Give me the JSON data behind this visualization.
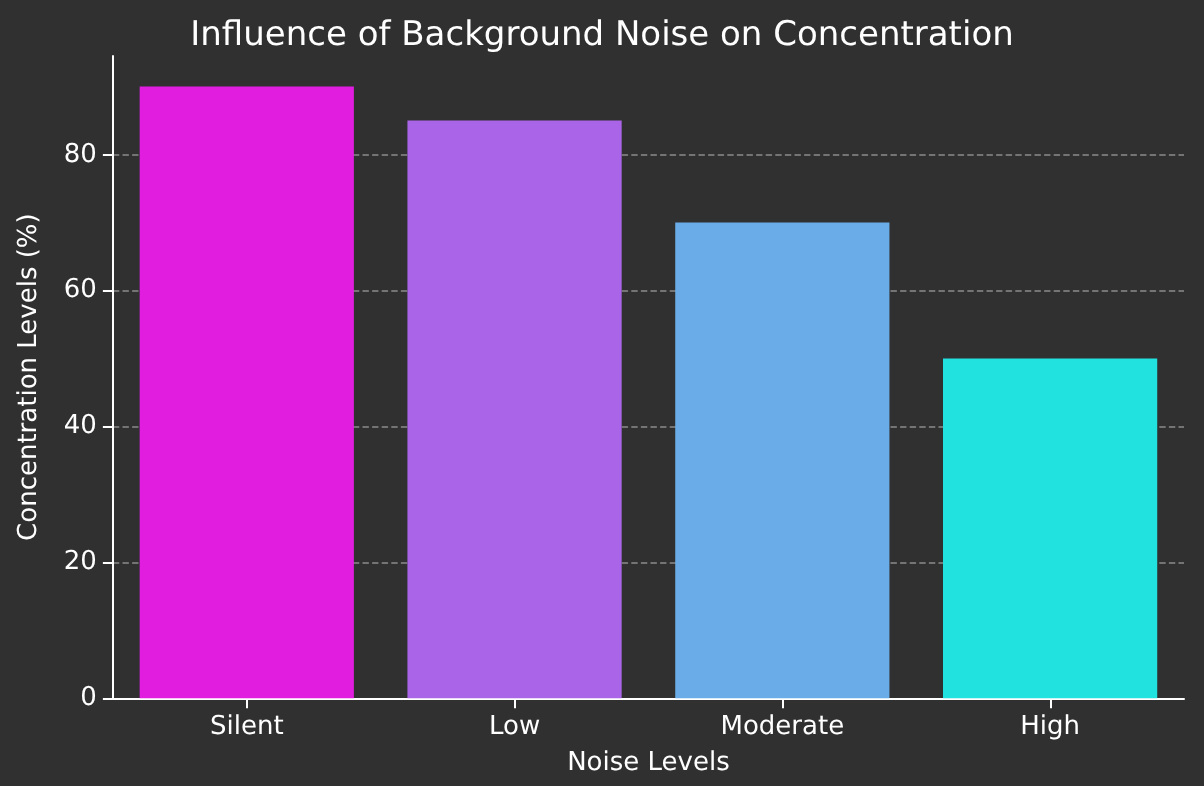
{
  "chart_data": {
    "type": "bar",
    "title": "Influence of Background Noise on Concentration",
    "xlabel": "Noise Levels",
    "ylabel": "Concentration Levels (%)",
    "categories": [
      "Silent",
      "Low",
      "Moderate",
      "High"
    ],
    "values": [
      90,
      85,
      70,
      50
    ],
    "colors": [
      "#e11ee0",
      "#aa64e8",
      "#6aace8",
      "#22e2e0"
    ],
    "ylim": [
      0,
      94.5
    ],
    "yticks": [
      0,
      20,
      40,
      60,
      80
    ],
    "grid": "y"
  }
}
